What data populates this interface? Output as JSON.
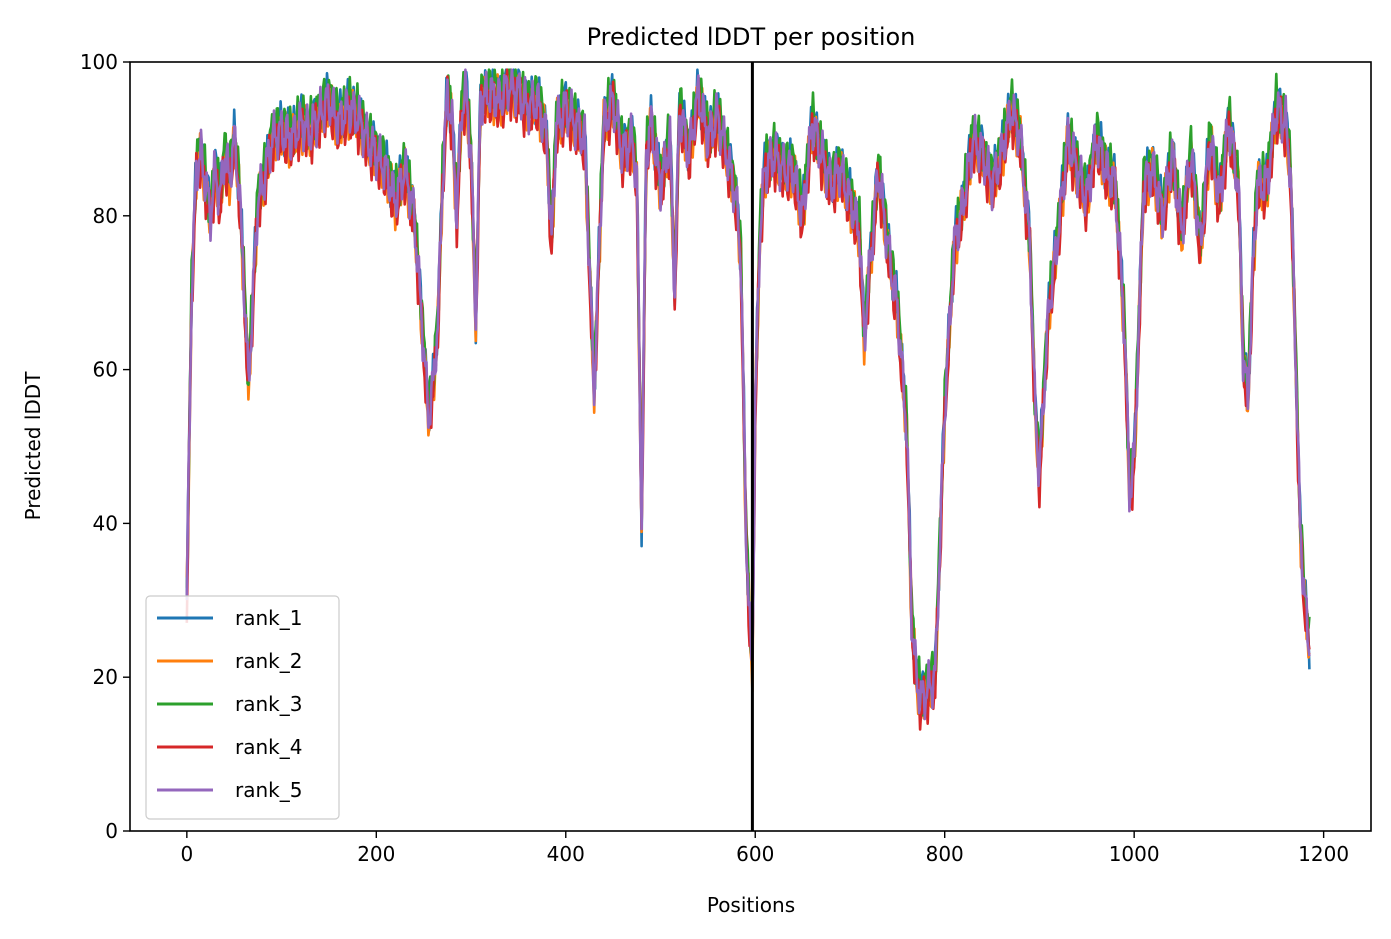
{
  "chart_data": {
    "type": "line",
    "title": "Predicted lDDT per position",
    "xlabel": "Positions",
    "ylabel": "Predicted lDDT",
    "xlim": [
      -60,
      1250
    ],
    "ylim": [
      0,
      100
    ],
    "xticks": [
      0,
      200,
      400,
      600,
      800,
      1000,
      1200
    ],
    "yticks": [
      0,
      20,
      40,
      60,
      80,
      100
    ],
    "legend_position": "lower-left",
    "grid": false,
    "vline": 597,
    "vline_color": "#000000",
    "series": [
      {
        "name": "rank_1",
        "color": "#1f77b4"
      },
      {
        "name": "rank_2",
        "color": "#ff7f0e"
      },
      {
        "name": "rank_3",
        "color": "#2ca02c"
      },
      {
        "name": "rank_4",
        "color": "#d62728"
      },
      {
        "name": "rank_5",
        "color": "#9467bd"
      }
    ],
    "profile": {
      "x": [
        0,
        5,
        10,
        15,
        20,
        25,
        30,
        35,
        40,
        45,
        50,
        55,
        60,
        65,
        70,
        75,
        80,
        90,
        100,
        110,
        120,
        130,
        140,
        150,
        160,
        170,
        180,
        190,
        200,
        210,
        220,
        230,
        240,
        250,
        255,
        260,
        265,
        270,
        275,
        280,
        285,
        290,
        295,
        300,
        305,
        310,
        320,
        330,
        340,
        350,
        360,
        370,
        380,
        385,
        390,
        400,
        410,
        420,
        430,
        440,
        450,
        460,
        470,
        475,
        480,
        485,
        490,
        500,
        510,
        515,
        520,
        530,
        540,
        550,
        560,
        570,
        580,
        585,
        590,
        595,
        597,
        600,
        605,
        610,
        620,
        630,
        640,
        650,
        660,
        670,
        680,
        690,
        700,
        710,
        715,
        720,
        730,
        740,
        750,
        760,
        765,
        770,
        775,
        780,
        790,
        800,
        810,
        820,
        830,
        840,
        850,
        860,
        870,
        880,
        890,
        895,
        900,
        905,
        910,
        920,
        930,
        940,
        950,
        960,
        970,
        980,
        990,
        995,
        1000,
        1010,
        1020,
        1030,
        1040,
        1050,
        1060,
        1070,
        1080,
        1090,
        1100,
        1110,
        1115,
        1120,
        1125,
        1130,
        1140,
        1150,
        1160,
        1165,
        1170,
        1175,
        1180,
        1185
      ],
      "y": [
        30,
        70,
        86,
        88,
        84,
        80,
        86,
        82,
        88,
        85,
        90,
        84,
        72,
        58,
        70,
        82,
        84,
        90,
        91,
        90,
        92,
        91,
        93,
        95,
        92,
        94,
        93,
        90,
        88,
        86,
        82,
        86,
        80,
        63,
        54,
        58,
        66,
        85,
        96,
        92,
        80,
        94,
        96,
        88,
        66,
        95,
        96,
        95,
        97,
        96,
        94,
        95,
        90,
        76,
        92,
        94,
        92,
        90,
        57,
        92,
        95,
        88,
        90,
        85,
        40,
        88,
        92,
        84,
        90,
        70,
        94,
        88,
        96,
        90,
        93,
        88,
        82,
        74,
        40,
        24,
        22,
        55,
        78,
        86,
        88,
        86,
        86,
        80,
        92,
        88,
        84,
        86,
        82,
        78,
        64,
        72,
        86,
        76,
        68,
        52,
        28,
        20,
        17,
        18,
        20,
        55,
        76,
        82,
        90,
        88,
        84,
        88,
        94,
        90,
        76,
        56,
        46,
        58,
        68,
        78,
        90,
        86,
        82,
        90,
        86,
        84,
        65,
        44,
        48,
        84,
        86,
        80,
        88,
        78,
        88,
        76,
        90,
        82,
        92,
        84,
        62,
        56,
        72,
        84,
        84,
        94,
        92,
        86,
        64,
        40,
        30,
        24
      ],
      "rank_offsets": [
        0.6,
        -0.4,
        0.9,
        -1.1,
        0.0
      ]
    }
  }
}
